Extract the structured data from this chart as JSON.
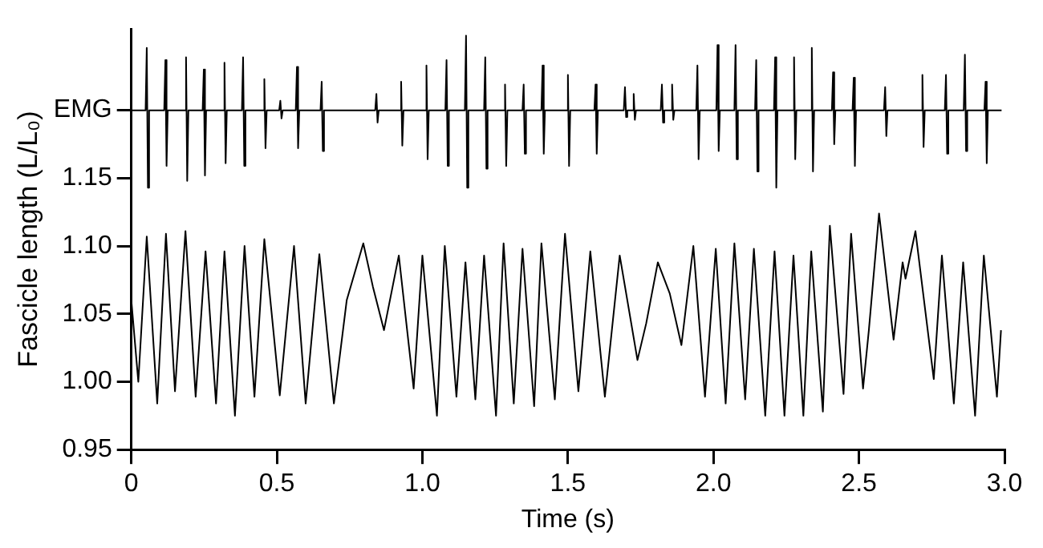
{
  "chart_data": {
    "type": "line",
    "xlabel": "Time (s)",
    "ylabel": "Fascicle length (L/L₀)",
    "xlim": [
      0,
      3
    ],
    "xticks": [
      0,
      0.5,
      {
        "value": 1,
        "label": "1.0"
      },
      1.5,
      {
        "value": 2,
        "label": "2.0"
      },
      2.5,
      {
        "value": 3,
        "label": "3.0"
      }
    ],
    "ylim": [
      0.95,
      1.26
    ],
    "yticks": [
      0.95,
      {
        "value": 1,
        "label": "1.00"
      },
      1.05,
      {
        "value": 1.1,
        "label": "1.10"
      },
      1.15,
      {
        "value": 1.2,
        "label": "EMG"
      }
    ],
    "grid": false,
    "legend": false,
    "marker": "none",
    "line_style": "solid",
    "series": [
      {
        "color": "#000000",
        "x": [
          0,
          0.024,
          0.053,
          0.089,
          0.119,
          0.15,
          0.186,
          0.221,
          0.255,
          0.291,
          0.32,
          0.356,
          0.389,
          0.423,
          0.457,
          0.51,
          0.559,
          0.599,
          0.646,
          0.696,
          0.74,
          0.797,
          0.83,
          0.868,
          0.919,
          0.97,
          1.0,
          1.05,
          1.077,
          1.117,
          1.148,
          1.182,
          1.212,
          1.253,
          1.279,
          1.314,
          1.344,
          1.384,
          1.409,
          1.455,
          1.49,
          1.536,
          1.577,
          1.627,
          1.678,
          1.739,
          1.769,
          1.809,
          1.85,
          1.89,
          1.931,
          1.971,
          2.008,
          2.042,
          2.072,
          2.109,
          2.139,
          2.178,
          2.21,
          2.244,
          2.275,
          2.309,
          2.336,
          2.376,
          2.4,
          2.447,
          2.473,
          2.514,
          2.534,
          2.569,
          2.619,
          2.65,
          2.66,
          2.694,
          2.757,
          2.785,
          2.826,
          2.858,
          2.899,
          2.929,
          2.974,
          2.988
        ],
        "values": [
          1.06,
          1.0,
          1.107,
          0.984,
          1.109,
          0.993,
          1.111,
          0.989,
          1.096,
          0.984,
          1.096,
          0.975,
          1.1,
          0.989,
          1.105,
          0.99,
          1.1,
          0.984,
          1.094,
          0.984,
          1.06,
          1.102,
          1.07,
          1.038,
          1.093,
          0.995,
          1.093,
          0.975,
          1.1,
          0.989,
          1.088,
          0.987,
          1.093,
          0.975,
          1.102,
          0.984,
          1.098,
          0.982,
          1.102,
          0.987,
          1.109,
          0.993,
          1.096,
          0.989,
          1.093,
          1.016,
          1.043,
          1.088,
          1.065,
          1.027,
          1.1,
          0.989,
          1.098,
          0.984,
          1.102,
          0.987,
          1.098,
          0.975,
          1.096,
          0.975,
          1.093,
          0.975,
          1.096,
          0.978,
          1.115,
          0.991,
          1.109,
          0.995,
          1.038,
          1.124,
          1.031,
          1.088,
          1.076,
          1.111,
          1.002,
          1.093,
          0.984,
          1.088,
          0.975,
          1.093,
          0.989,
          1.038
        ]
      },
      {
        "color": "#000000",
        "x": [
          0,
          0.049,
          0.053,
          0.057,
          0.061,
          0.113,
          0.117,
          0.121,
          0.125,
          0.184,
          0.188,
          0.192,
          0.196,
          0.245,
          0.249,
          0.253,
          0.257,
          0.316,
          0.32,
          0.324,
          0.328,
          0.38,
          0.384,
          0.388,
          0.392,
          0.453,
          0.457,
          0.461,
          0.465,
          0.508,
          0.512,
          0.516,
          0.52,
          0.565,
          0.569,
          0.573,
          0.577,
          0.65,
          0.654,
          0.658,
          0.662,
          0.838,
          0.842,
          0.846,
          0.85,
          0.923,
          0.927,
          0.931,
          0.935,
          1.01,
          1.014,
          1.018,
          1.022,
          1.079,
          1.083,
          1.087,
          1.091,
          1.146,
          1.15,
          1.154,
          1.158,
          1.212,
          1.216,
          1.22,
          1.224,
          1.28,
          1.284,
          1.288,
          1.292,
          1.344,
          1.348,
          1.352,
          1.356,
          1.409,
          1.413,
          1.417,
          1.421,
          1.496,
          1.5,
          1.504,
          1.508,
          1.591,
          1.595,
          1.599,
          1.603,
          1.692,
          1.696,
          1.7,
          1.704,
          1.722,
          1.726,
          1.73,
          1.734,
          1.819,
          1.823,
          1.827,
          1.831,
          1.854,
          1.858,
          1.862,
          1.866,
          1.941,
          1.945,
          1.949,
          1.953,
          2.01,
          2.014,
          2.018,
          2.022,
          2.072,
          2.076,
          2.08,
          2.084,
          2.143,
          2.147,
          2.151,
          2.155,
          2.208,
          2.212,
          2.216,
          2.22,
          2.273,
          2.277,
          2.281,
          2.285,
          2.334,
          2.338,
          2.342,
          2.346,
          2.407,
          2.411,
          2.415,
          2.419,
          2.478,
          2.482,
          2.486,
          2.49,
          2.586,
          2.59,
          2.594,
          2.598,
          2.714,
          2.718,
          2.722,
          2.726,
          2.795,
          2.799,
          2.803,
          2.807,
          2.86,
          2.864,
          2.868,
          2.872,
          2.931,
          2.935,
          2.939,
          2.943,
          2.99
        ],
        "values": [
          1.2,
          1.2,
          1.246,
          1.143,
          1.2,
          1.2,
          1.237,
          1.159,
          1.2,
          1.2,
          1.239,
          1.148,
          1.2,
          1.2,
          1.23,
          1.152,
          1.2,
          1.2,
          1.235,
          1.161,
          1.2,
          1.2,
          1.239,
          1.159,
          1.2,
          1.2,
          1.223,
          1.172,
          1.2,
          1.2,
          1.207,
          1.194,
          1.2,
          1.2,
          1.232,
          1.172,
          1.2,
          1.2,
          1.221,
          1.17,
          1.2,
          1.2,
          1.212,
          1.191,
          1.2,
          1.2,
          1.221,
          1.174,
          1.2,
          1.2,
          1.233,
          1.164,
          1.2,
          1.2,
          1.237,
          1.159,
          1.2,
          1.2,
          1.255,
          1.143,
          1.2,
          1.2,
          1.239,
          1.157,
          1.2,
          1.2,
          1.219,
          1.159,
          1.2,
          1.2,
          1.219,
          1.168,
          1.2,
          1.2,
          1.233,
          1.168,
          1.2,
          1.2,
          1.226,
          1.159,
          1.2,
          1.2,
          1.219,
          1.168,
          1.2,
          1.2,
          1.217,
          1.195,
          1.2,
          1.2,
          1.212,
          1.193,
          1.2,
          1.2,
          1.219,
          1.191,
          1.2,
          1.2,
          1.219,
          1.193,
          1.2,
          1.2,
          1.233,
          1.164,
          1.2,
          1.2,
          1.248,
          1.17,
          1.2,
          1.2,
          1.248,
          1.164,
          1.2,
          1.2,
          1.237,
          1.155,
          1.2,
          1.2,
          1.239,
          1.143,
          1.2,
          1.2,
          1.239,
          1.164,
          1.2,
          1.2,
          1.246,
          1.155,
          1.2,
          1.2,
          1.228,
          1.175,
          1.2,
          1.2,
          1.224,
          1.159,
          1.2,
          1.2,
          1.217,
          1.181,
          1.2,
          1.2,
          1.226,
          1.173,
          1.2,
          1.2,
          1.226,
          1.168,
          1.2,
          1.2,
          1.241,
          1.17,
          1.2,
          1.2,
          1.221,
          1.161,
          1.2,
          1.2
        ]
      }
    ]
  }
}
